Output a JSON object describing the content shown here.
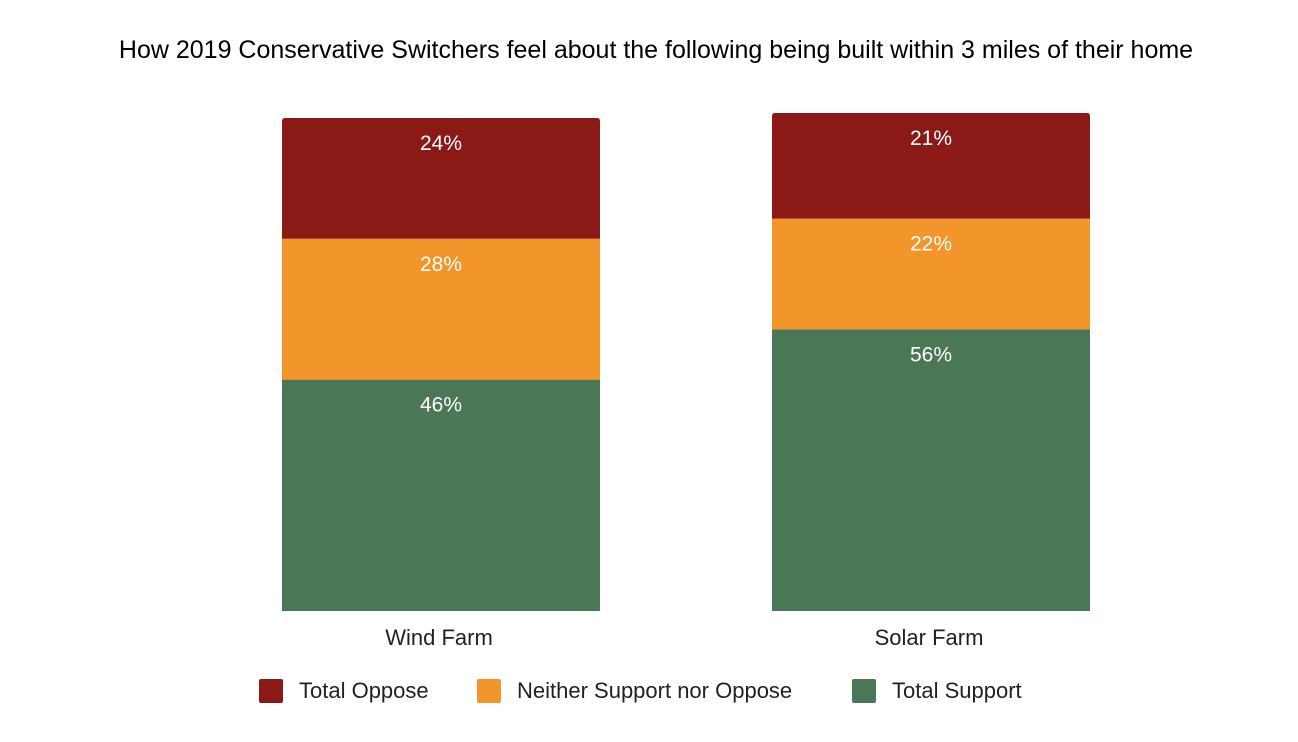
{
  "colors": {
    "oppose": "#8b1a16",
    "neither": "#f2952a",
    "support": "#4a7756",
    "text_on_bar": "#ffffff",
    "axis_text": "#222222"
  },
  "chart_data": {
    "type": "bar",
    "stacked": true,
    "title": "How 2019 Conservative Switchers feel about the following being built within 3 miles of their home",
    "categories": [
      "Wind Farm",
      "Solar Farm"
    ],
    "series": [
      {
        "name": "Total Support",
        "values": [
          46,
          56
        ],
        "labels": [
          "46%",
          "56%"
        ],
        "color": "#4a7756"
      },
      {
        "name": "Neither Support nor Oppose",
        "values": [
          28,
          22
        ],
        "labels": [
          "28%",
          "22%"
        ],
        "color": "#f2952a"
      },
      {
        "name": "Total Oppose",
        "values": [
          24,
          21
        ],
        "labels": [
          "24%",
          "21%"
        ],
        "color": "#8b1a16"
      }
    ],
    "legend": {
      "position": "bottom",
      "entries": [
        "Total Oppose",
        "Neither Support nor Oppose",
        "Total Support"
      ]
    },
    "ylim": [
      0,
      100
    ],
    "grid": false,
    "y_axis_visible": false
  }
}
